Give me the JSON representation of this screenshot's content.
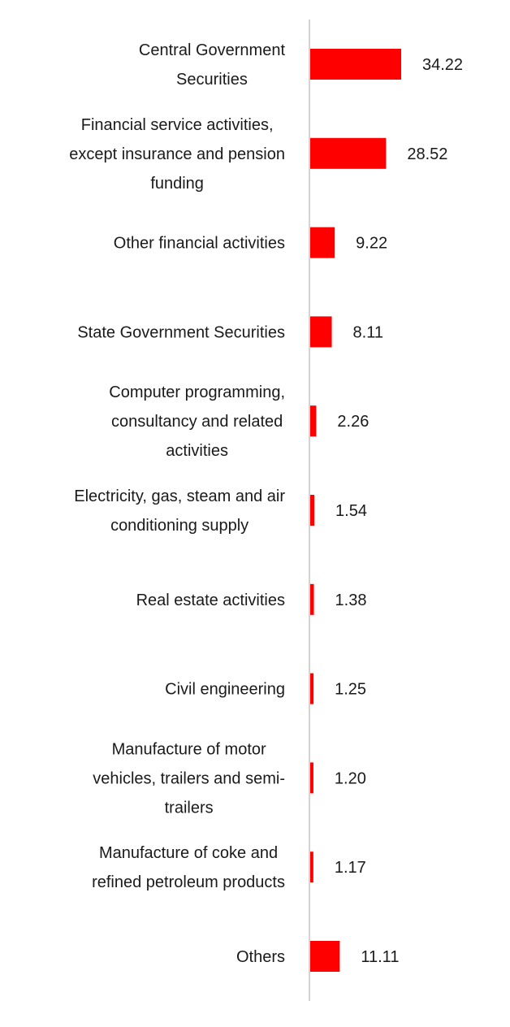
{
  "chart_data": {
    "type": "bar",
    "orientation": "horizontal",
    "title": "",
    "xlabel": "",
    "ylabel": "",
    "xlim": [
      0,
      34.22
    ],
    "grid": false,
    "legend": "none",
    "bar_color": "#ff0000",
    "axis_color": "#d3d3d3",
    "categories": [
      "Central Government Securities",
      "Financial service activities, except insurance and pension funding",
      "Other financial activities",
      "State Government Securities",
      "Computer programming, consultancy and related activities",
      "Electricity, gas, steam and air conditioning supply",
      "Real estate activities",
      "Civil engineering",
      "Manufacture of motor vehicles, trailers and semi-trailers",
      "Manufacture of coke and refined petroleum products",
      "Others"
    ],
    "label_lines": [
      [
        "Central Government",
        "Securities"
      ],
      [
        "Financial service activities,",
        "except insurance and pension",
        "funding"
      ],
      [
        "Other financial activities"
      ],
      [
        "State Government Securities"
      ],
      [
        "Computer programming,",
        "consultancy and related",
        "activities"
      ],
      [
        "Electricity, gas, steam and air",
        "conditioning supply"
      ],
      [
        "Real estate activities"
      ],
      [
        "Civil engineering"
      ],
      [
        "Manufacture of motor",
        "vehicles, trailers and semi-",
        "trailers"
      ],
      [
        "Manufacture of coke and",
        "refined petroleum products"
      ],
      [
        "Others"
      ]
    ],
    "values": [
      34.22,
      28.52,
      9.22,
      8.11,
      2.26,
      1.54,
      1.38,
      1.25,
      1.2,
      1.17,
      11.11
    ],
    "value_labels": [
      "34.22",
      "28.52",
      "9.22",
      "8.11",
      "2.26",
      "1.54",
      "1.38",
      "1.25",
      "1.20",
      "1.17",
      "11.11"
    ]
  }
}
